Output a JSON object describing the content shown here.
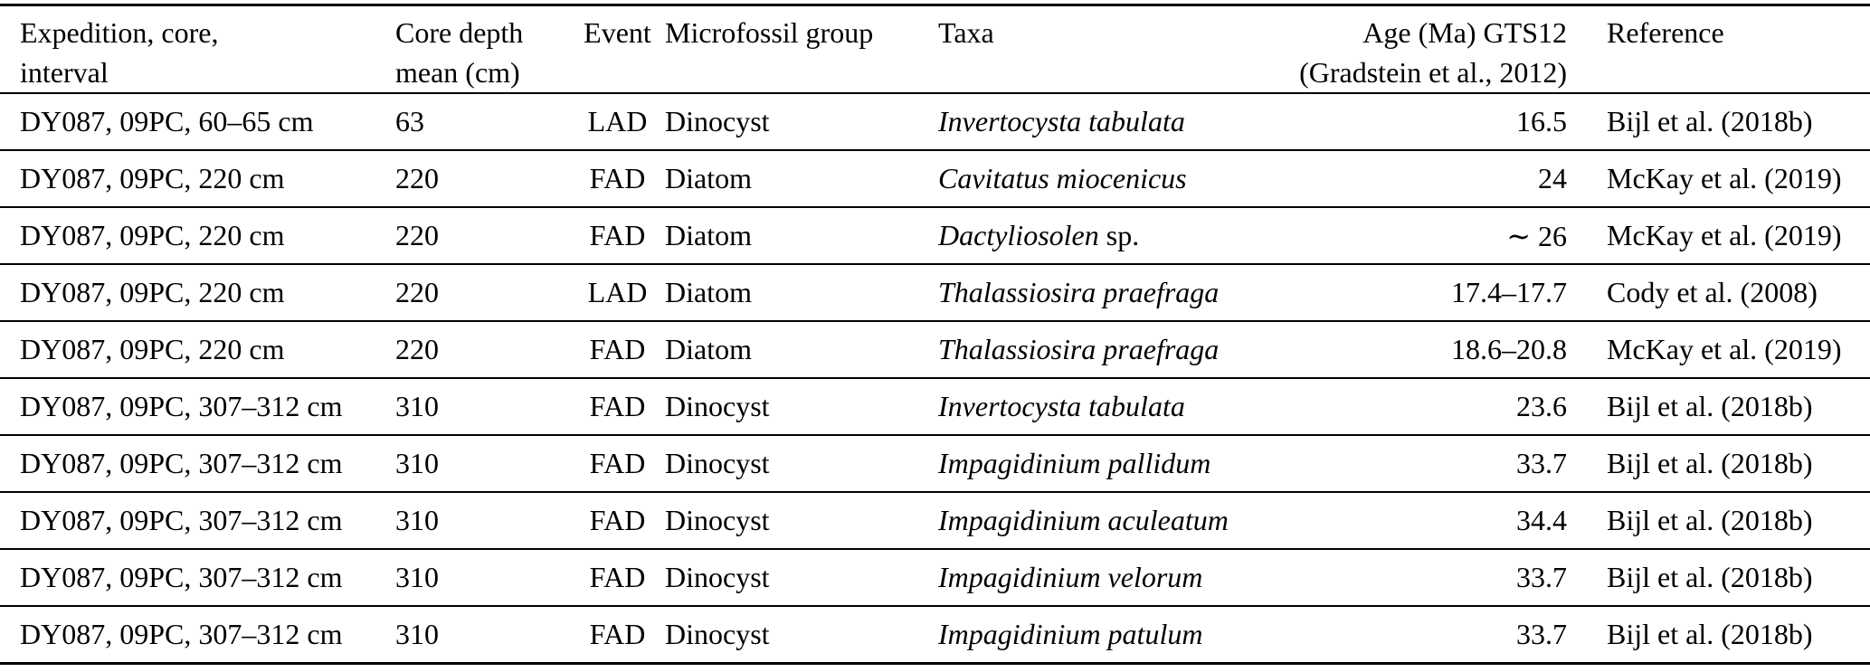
{
  "page": {
    "background_color": "#ffffff",
    "text_color": "#000000",
    "rule_color": "#000000"
  },
  "table": {
    "columns": [
      {
        "id": "expedition",
        "line1": "Expedition, core,",
        "line2": "interval"
      },
      {
        "id": "core_depth",
        "line1": "Core depth",
        "line2": "mean (cm)"
      },
      {
        "id": "event",
        "line1": "Event",
        "line2": ""
      },
      {
        "id": "group",
        "line1": "Microfossil group",
        "line2": ""
      },
      {
        "id": "taxa",
        "line1": "Taxa",
        "line2": ""
      },
      {
        "id": "age",
        "line1": "Age (Ma) GTS12",
        "line2": "(Gradstein et al., 2012)"
      },
      {
        "id": "reference",
        "line1": "Reference",
        "line2": ""
      }
    ],
    "rows": [
      {
        "expedition": "DY087, 09PC, 60–65 cm",
        "core_depth": "63",
        "event": "LAD",
        "group": "Dinocyst",
        "taxa_italic": "Invertocysta tabulata",
        "taxa_suffix": "",
        "age": "16.5",
        "reference": "Bijl et al. (2018b)"
      },
      {
        "expedition": "DY087, 09PC, 220 cm",
        "core_depth": "220",
        "event": "FAD",
        "group": "Diatom",
        "taxa_italic": "Cavitatus miocenicus",
        "taxa_suffix": "",
        "age": "24",
        "reference": "McKay et al. (2019)"
      },
      {
        "expedition": "DY087, 09PC, 220 cm",
        "core_depth": "220",
        "event": "FAD",
        "group": "Diatom",
        "taxa_italic": "Dactyliosolen",
        "taxa_suffix": " sp.",
        "age": "∼ 26",
        "reference": "McKay et al. (2019)"
      },
      {
        "expedition": "DY087, 09PC, 220 cm",
        "core_depth": "220",
        "event": "LAD",
        "group": "Diatom",
        "taxa_italic": "Thalassiosira praefraga",
        "taxa_suffix": "",
        "age": "17.4–17.7",
        "reference": "Cody et al. (2008)"
      },
      {
        "expedition": "DY087, 09PC, 220 cm",
        "core_depth": "220",
        "event": "FAD",
        "group": "Diatom",
        "taxa_italic": "Thalassiosira praefraga",
        "taxa_suffix": "",
        "age": "18.6–20.8",
        "reference": "McKay et al. (2019)"
      },
      {
        "expedition": "DY087, 09PC, 307–312 cm",
        "core_depth": "310",
        "event": "FAD",
        "group": "Dinocyst",
        "taxa_italic": "Invertocysta tabulata",
        "taxa_suffix": "",
        "age": "23.6",
        "reference": "Bijl et al. (2018b)"
      },
      {
        "expedition": "DY087, 09PC, 307–312 cm",
        "core_depth": "310",
        "event": "FAD",
        "group": "Dinocyst",
        "taxa_italic": "Impagidinium pallidum",
        "taxa_suffix": "",
        "age": "33.7",
        "reference": "Bijl et al. (2018b)"
      },
      {
        "expedition": "DY087, 09PC, 307–312 cm",
        "core_depth": "310",
        "event": "FAD",
        "group": "Dinocyst",
        "taxa_italic": "Impagidinium aculeatum",
        "taxa_suffix": "",
        "age": "34.4",
        "reference": "Bijl et al. (2018b)"
      },
      {
        "expedition": "DY087, 09PC, 307–312 cm",
        "core_depth": "310",
        "event": "FAD",
        "group": "Dinocyst",
        "taxa_italic": "Impagidinium velorum",
        "taxa_suffix": "",
        "age": "33.7",
        "reference": "Bijl et al. (2018b)"
      },
      {
        "expedition": "DY087, 09PC, 307–312 cm",
        "core_depth": "310",
        "event": "FAD",
        "group": "Dinocyst",
        "taxa_italic": "Impagidinium patulum",
        "taxa_suffix": "",
        "age": "33.7",
        "reference": "Bijl et al. (2018b)"
      }
    ]
  }
}
